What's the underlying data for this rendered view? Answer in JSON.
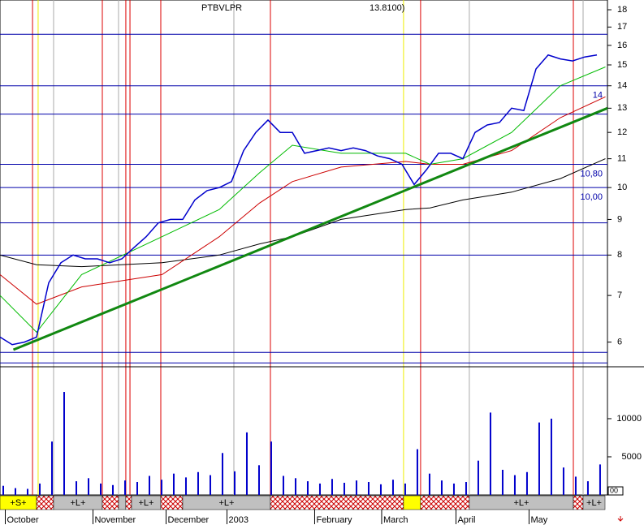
{
  "chart_data": [
    {
      "type": "line",
      "title": "PTBVLPR",
      "subtitle": "13.8100)",
      "log_scale": true,
      "xlim": [
        0,
        49.87
      ],
      "ylim": [
        5.53,
        18.59
      ],
      "yticks": [
        6,
        7,
        8,
        9,
        10,
        11,
        12,
        13,
        14,
        15,
        16,
        17,
        18
      ],
      "series": [
        {
          "name": "MA long",
          "color": "#000000",
          "width": 1,
          "x": [
            0,
            3,
            6.7,
            13.3,
            18,
            21.3,
            24,
            28,
            33.3,
            35.3,
            38,
            42,
            46,
            49.7
          ],
          "values": [
            8.0,
            7.75,
            7.7,
            7.8,
            8.0,
            8.3,
            8.5,
            9.0,
            9.3,
            9.35,
            9.6,
            9.85,
            10.3,
            11.0
          ]
        },
        {
          "name": "MA mid",
          "color": "#cc0000",
          "width": 1,
          "x": [
            0,
            3,
            6.7,
            13.3,
            18,
            21.3,
            24,
            28,
            33.3,
            35.3,
            38,
            42,
            46,
            49.7
          ],
          "values": [
            7.5,
            6.8,
            7.2,
            7.5,
            8.5,
            9.5,
            10.2,
            10.7,
            10.9,
            10.8,
            10.8,
            11.3,
            12.6,
            13.5
          ]
        },
        {
          "name": "MA short",
          "color": "#00bb00",
          "width": 1,
          "x": [
            0,
            3,
            6.7,
            13.3,
            18,
            21.3,
            24,
            28,
            33.3,
            35.3,
            38,
            42,
            46,
            49.7
          ],
          "values": [
            7.0,
            6.2,
            7.5,
            8.5,
            9.3,
            10.5,
            11.5,
            11.2,
            11.2,
            10.8,
            11.0,
            12.0,
            14.0,
            14.9
          ]
        },
        {
          "name": "Trend",
          "color": "#118811",
          "width": 3,
          "x": [
            1.1,
            49.87
          ],
          "values": [
            5.85,
            13.0
          ]
        },
        {
          "name": "Close",
          "color": "#0000cc",
          "width": 1.5,
          "x": [
            0,
            1,
            2,
            3,
            4,
            5,
            6,
            7,
            8,
            9,
            10,
            11,
            12,
            13,
            14,
            15,
            16,
            17,
            18,
            19,
            20,
            21,
            22,
            23,
            24,
            25,
            26,
            27,
            28,
            29,
            30,
            31,
            32,
            33,
            34,
            35,
            36,
            37,
            38,
            39,
            40,
            41,
            42,
            43,
            44,
            45,
            46,
            47,
            48,
            49
          ],
          "values": [
            6.1,
            5.95,
            6.0,
            6.1,
            7.3,
            7.8,
            8.0,
            7.9,
            7.9,
            7.8,
            7.9,
            8.2,
            8.5,
            8.9,
            9.0,
            9.0,
            9.6,
            9.9,
            10.0,
            10.2,
            11.3,
            12.0,
            12.5,
            12.0,
            12.0,
            11.2,
            11.3,
            11.4,
            11.3,
            11.4,
            11.3,
            11.1,
            11.0,
            10.8,
            10.1,
            10.6,
            11.2,
            11.2,
            11.0,
            12.0,
            12.3,
            12.4,
            13.0,
            12.9,
            14.8,
            15.5,
            15.3,
            15.2,
            15.4,
            15.5
          ]
        }
      ],
      "hlines": [
        16.6,
        {
          "value": 14,
          "label": "14"
        },
        12.75,
        {
          "value": 10.8,
          "label": "10,80"
        },
        {
          "value": 10.0,
          "label": "10,00"
        },
        8.9,
        8.0,
        5.8,
        5.6
      ],
      "vlines_red": [
        2.67,
        8.4,
        10.33,
        10.67,
        13.2,
        22.2,
        34.53,
        47.07
      ],
      "vlines_yellow": [
        3.13,
        33.13
      ],
      "vlines_grey": [
        4.4,
        9.73,
        19.2,
        38.53,
        47.87
      ]
    },
    {
      "type": "bar",
      "xlim": [
        0,
        49.87
      ],
      "ylim": [
        0,
        16800
      ],
      "yticks": [
        5000,
        10000
      ],
      "color": "#0000cc",
      "corner_label": "00",
      "x": [
        0,
        1,
        2,
        3,
        4,
        5,
        6,
        7,
        8,
        9,
        10,
        11,
        12,
        13,
        14,
        15,
        16,
        17,
        18,
        19,
        20,
        21,
        22,
        23,
        24,
        25,
        26,
        27,
        28,
        29,
        30,
        31,
        32,
        33,
        34,
        35,
        36,
        37,
        38,
        39,
        40,
        41,
        42,
        43,
        44,
        45,
        46,
        47,
        48,
        49
      ],
      "values": [
        1200,
        900,
        800,
        1500,
        7000,
        13500,
        1800,
        2200,
        1500,
        1300,
        1900,
        1700,
        2500,
        2000,
        2800,
        2300,
        3000,
        2600,
        5500,
        3100,
        8200,
        3900,
        7000,
        2500,
        2200,
        1800,
        1500,
        2100,
        1600,
        1900,
        1700,
        1400,
        2000,
        1500,
        6000,
        2800,
        1900,
        1500,
        1700,
        4500,
        10800,
        3300,
        2600,
        3000,
        9500,
        10000,
        3600,
        2400,
        1800,
        4000
      ],
      "x_labels": [
        {
          "value": 1.9,
          "label": "October"
        },
        {
          "value": 9.1,
          "label": "November"
        },
        {
          "value": 15.1,
          "label": "December"
        },
        {
          "value": 20.1,
          "label": "2003"
        },
        {
          "value": 27.3,
          "label": "February"
        },
        {
          "value": 32.8,
          "label": "March"
        },
        {
          "value": 38.9,
          "label": "April"
        },
        {
          "value": 44.9,
          "label": "May"
        }
      ],
      "strip": [
        {
          "from": 0,
          "to": 3,
          "label": "+S+",
          "kind": "yellow"
        },
        {
          "from": 3,
          "to": 4.4,
          "label": null,
          "kind": "hatch"
        },
        {
          "from": 4.4,
          "to": 8.4,
          "label": "+L+",
          "kind": "grey"
        },
        {
          "from": 8.4,
          "to": 9.73,
          "label": null,
          "kind": "hatch"
        },
        {
          "from": 9.73,
          "to": 10.33,
          "label": null,
          "kind": "grey"
        },
        {
          "from": 10.33,
          "to": 10.8,
          "label": null,
          "kind": "hatch"
        },
        {
          "from": 10.8,
          "to": 13.2,
          "label": "+L+",
          "kind": "grey"
        },
        {
          "from": 13.2,
          "to": 15,
          "label": null,
          "kind": "hatch"
        },
        {
          "from": 15,
          "to": 22.2,
          "label": "+L+",
          "kind": "grey"
        },
        {
          "from": 22.2,
          "to": 33.13,
          "label": null,
          "kind": "hatch"
        },
        {
          "from": 33.13,
          "to": 34.53,
          "label": null,
          "kind": "yellow"
        },
        {
          "from": 34.53,
          "to": 38.53,
          "label": null,
          "kind": "hatch"
        },
        {
          "from": 38.53,
          "to": 47.07,
          "label": "+L+",
          "kind": "grey"
        },
        {
          "from": 47.07,
          "to": 47.87,
          "label": null,
          "kind": "hatch"
        },
        {
          "from": 47.87,
          "to": 49.67,
          "label": "+L+",
          "kind": "grey"
        }
      ]
    }
  ]
}
